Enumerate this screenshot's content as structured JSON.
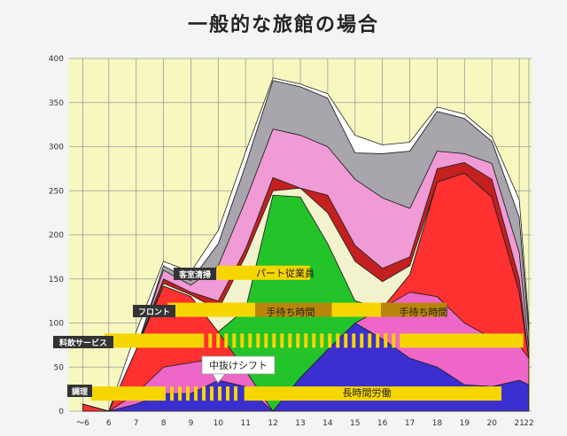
{
  "title": "一般的な旅館の場合",
  "chart_data": {
    "type": "area",
    "title": "一般的な旅館の場合",
    "x_tick_labels": [
      "〜6",
      "6",
      "7",
      "8",
      "9",
      "10",
      "11",
      "12",
      "13",
      "14",
      "15",
      "16",
      "17",
      "18",
      "19",
      "20",
      "21",
      "22"
    ],
    "y_ticks": [
      0,
      50,
      100,
      150,
      200,
      250,
      300,
      350,
      400
    ],
    "ylim": [
      0,
      400
    ],
    "grid": true,
    "x": [
      6,
      6,
      7,
      8,
      9,
      10,
      11,
      12,
      13,
      14,
      15,
      16,
      17,
      18,
      19,
      20,
      21,
      22
    ],
    "series": [
      {
        "color": "#3b2fd0",
        "values": [
          0,
          0,
          8,
          20,
          20,
          35,
          28,
          0,
          38,
          70,
          100,
          82,
          60,
          50,
          30,
          28,
          35,
          30
        ]
      },
      {
        "color": "#ee66c8",
        "values": [
          0,
          0,
          12,
          30,
          35,
          25,
          18,
          0,
          0,
          0,
          0,
          35,
          75,
          80,
          70,
          55,
          40,
          30
        ]
      },
      {
        "color": "#ff3030",
        "values": [
          8,
          0,
          50,
          92,
          75,
          30,
          0,
          0,
          0,
          0,
          0,
          0,
          20,
          130,
          170,
          160,
          60,
          0
        ]
      },
      {
        "color": "#22c42a",
        "values": [
          0,
          0,
          0,
          0,
          0,
          0,
          70,
          245,
          205,
          120,
          25,
          0,
          0,
          0,
          0,
          0,
          0,
          0
        ]
      },
      {
        "color": "#f2f2cc",
        "values": [
          0,
          0,
          0,
          3,
          2,
          25,
          60,
          5,
          10,
          35,
          45,
          30,
          10,
          0,
          0,
          0,
          0,
          0
        ]
      },
      {
        "color": "#c42020",
        "values": [
          0,
          0,
          0,
          5,
          3,
          10,
          8,
          15,
          0,
          20,
          18,
          15,
          10,
          15,
          12,
          20,
          15,
          0
        ]
      },
      {
        "color": "#f09ad6",
        "values": [
          0,
          0,
          0,
          10,
          8,
          40,
          55,
          55,
          60,
          55,
          75,
          80,
          55,
          20,
          10,
          18,
          30,
          10
        ]
      },
      {
        "color": "#a8a6ac",
        "values": [
          0,
          0,
          0,
          5,
          5,
          25,
          40,
          55,
          55,
          55,
          30,
          50,
          65,
          45,
          40,
          25,
          40,
          20
        ]
      },
      {
        "color": "#ffffff",
        "values": [
          0,
          0,
          20,
          5,
          10,
          15,
          15,
          3,
          3,
          5,
          20,
          10,
          10,
          5,
          5,
          5,
          20,
          10
        ]
      }
    ],
    "annotations": [
      {
        "text": "客室清掃",
        "kind": "category"
      },
      {
        "text": "フロント",
        "kind": "category"
      },
      {
        "text": "料飲サービス",
        "kind": "category"
      },
      {
        "text": "調理",
        "kind": "category"
      },
      {
        "text": "パート従業員",
        "kind": "box"
      },
      {
        "text": "手待ち時間",
        "kind": "box"
      },
      {
        "text": "手待ち時間",
        "kind": "box"
      },
      {
        "text": "中抜けシフト",
        "kind": "callout"
      },
      {
        "text": "長時間労働",
        "kind": "box"
      }
    ],
    "shift_bars": [
      {
        "x1": 6.7,
        "x2": 10.2,
        "y": 80
      },
      {
        "x1": 10.2,
        "x2": 17.6,
        "y": 80,
        "dashed": true
      },
      {
        "x1": 17.6,
        "x2": 22,
        "y": 80
      },
      {
        "x1": 9.0,
        "x2": 12.2,
        "y": 115
      },
      {
        "x1": 12.2,
        "x2": 15.0,
        "y": 115,
        "dark": true
      },
      {
        "x1": 15.0,
        "x2": 16.8,
        "y": 115
      },
      {
        "x1": 16.8,
        "x2": 19.2,
        "y": 115,
        "dark": true
      },
      {
        "x1": 10.8,
        "x2": 14.2,
        "y": 157
      },
      {
        "x1": 6.2,
        "x2": 8.8,
        "y": 20
      },
      {
        "x1": 8.8,
        "x2": 11.8,
        "y": 20,
        "dashed": true
      },
      {
        "x1": 11.8,
        "x2": 21.2,
        "y": 20
      }
    ]
  }
}
